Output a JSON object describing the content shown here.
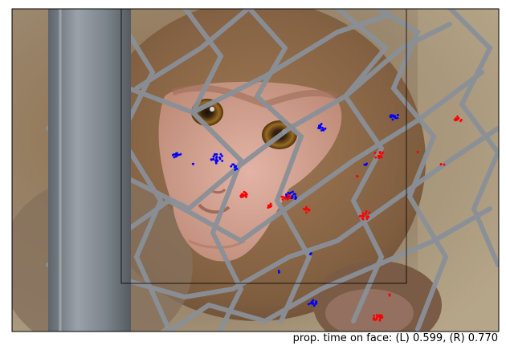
{
  "caption": "prop. time on face: (L) 0.599, (R) 0.770",
  "image": {
    "subject": "rhesus macaque behind chain-link fence with metal post",
    "face_roi_shown": true
  },
  "gaze_series": [
    {
      "id": "L",
      "color": "#0000ff",
      "proportion_on_face": 0.599
    },
    {
      "id": "R",
      "color": "#ff0000",
      "proportion_on_face": 0.77
    }
  ],
  "colors": {
    "background": "#8c6a48",
    "fur": "#9a7552",
    "face_skin": "#d8a89a",
    "fence_wire": "#8a9098",
    "post": "#7f878f",
    "left_gaze": "#0000ff",
    "right_gaze": "#ff0000"
  }
}
